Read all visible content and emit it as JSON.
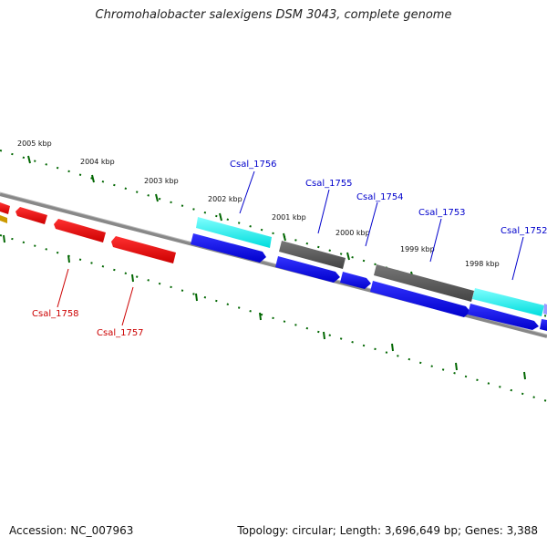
{
  "title": "Chromohalobacter salexigens DSM 3043, complete genome",
  "accession": "Accession: NC_007963",
  "topology": "Topology: circular; Length: 3,696,649 bp; Genes: 3,388",
  "scale_labels": [
    "2005 kbp",
    "2004 kbp",
    "2003 kbp",
    "2002 kbp",
    "2001 kbp",
    "2000 kbp",
    "1999 kbp",
    "1998 kbp"
  ],
  "gene_labels": {
    "forward": [
      "Csal_1756",
      "Csal_1755",
      "Csal_1754",
      "Csal_1753",
      "Csal_1752"
    ],
    "reverse": [
      "Csal_1758",
      "Csal_1757"
    ]
  },
  "colors": {
    "forward_label": "#0000cc",
    "reverse_label": "#cc0000",
    "cds_forward": "#0000ee",
    "cds_reverse": "#ee0000",
    "rna_gene": "#00ffff",
    "other_gene": "#555555",
    "backbone": "#888888",
    "tick": "#006600"
  }
}
